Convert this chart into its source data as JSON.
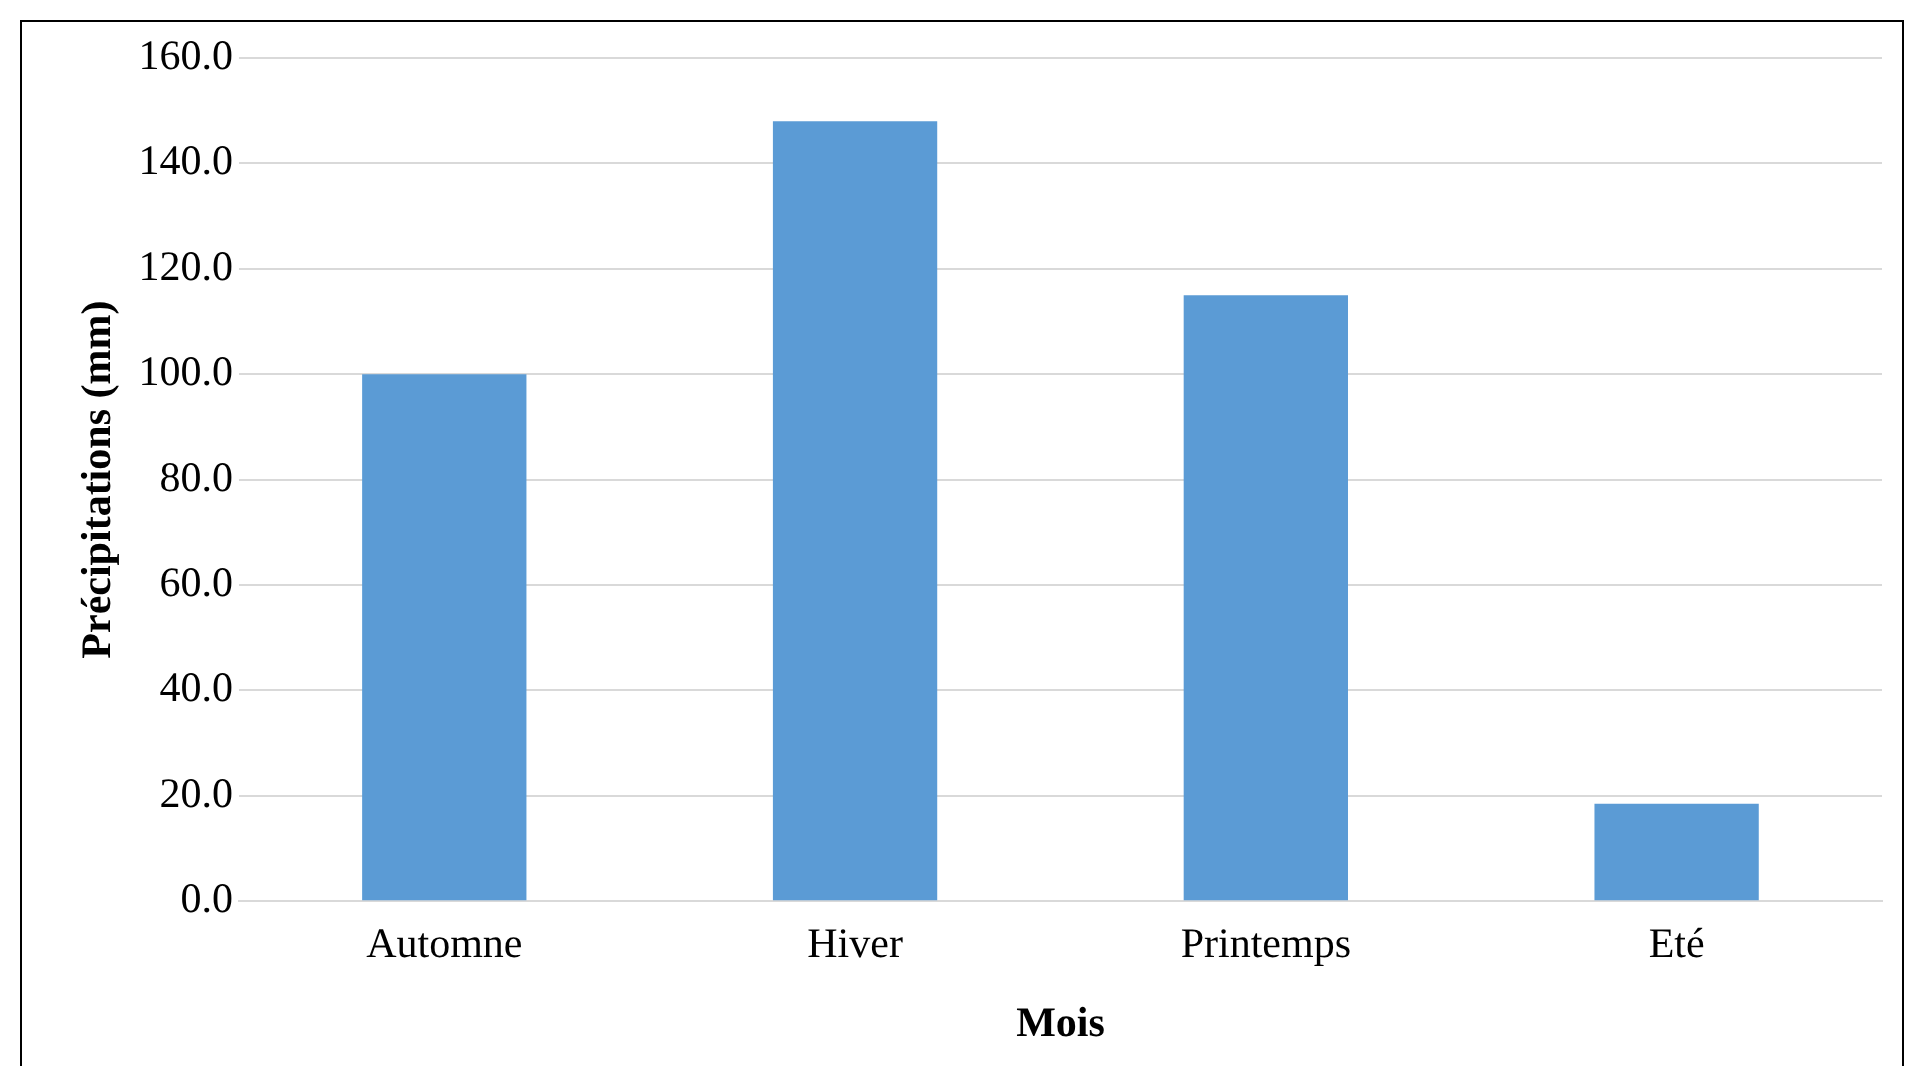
{
  "chart_data": {
    "type": "bar",
    "xlabel": "Mois",
    "ylabel": "Précipitations (mm)",
    "categories": [
      "Automne",
      "Hiver",
      "Printemps",
      "Eté"
    ],
    "values": [
      100,
      148,
      115,
      18.5
    ],
    "color": "#5b9bd5",
    "ylim": [
      0,
      160
    ],
    "yticks": [
      {
        "value": 0,
        "label": "0.0"
      },
      {
        "value": 20,
        "label": "20.0"
      },
      {
        "value": 40,
        "label": "40.0"
      },
      {
        "value": 60,
        "label": "60.0"
      },
      {
        "value": 80,
        "label": "80.0"
      },
      {
        "value": 100,
        "label": "100.0"
      },
      {
        "value": 120,
        "label": "120.0"
      },
      {
        "value": 140,
        "label": "140.0"
      },
      {
        "value": 160,
        "label": "160.0"
      }
    ],
    "grid": "y",
    "legend": false
  }
}
